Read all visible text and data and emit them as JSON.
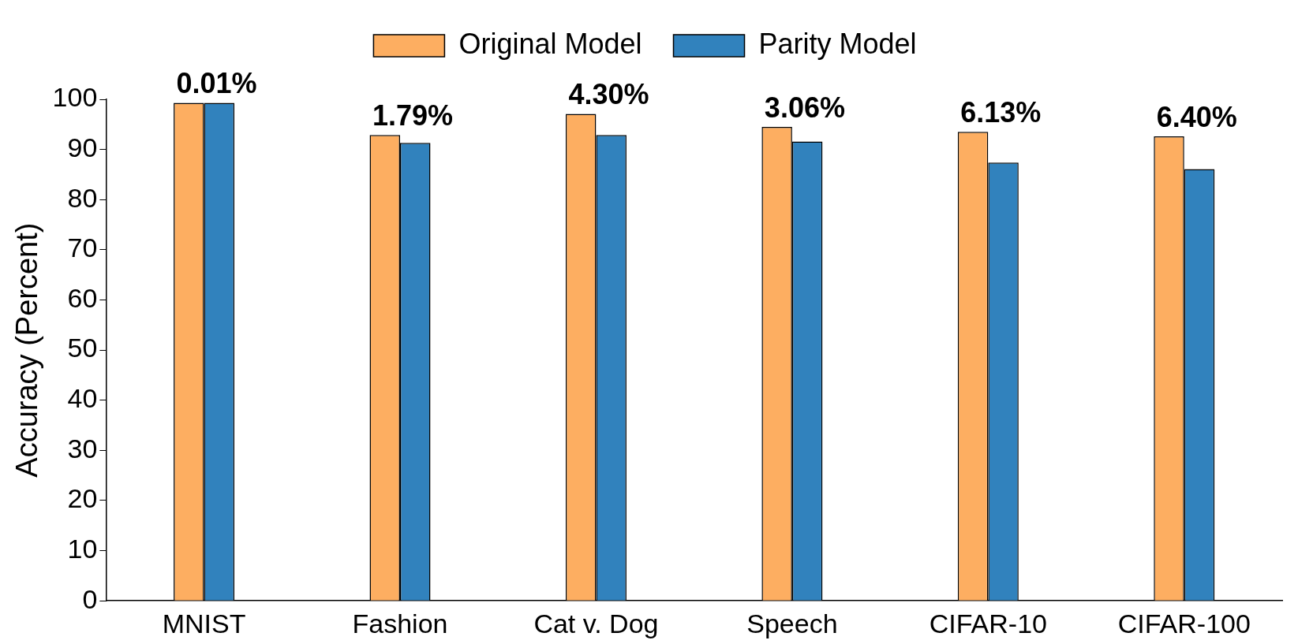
{
  "chart_data": {
    "type": "bar",
    "ylabel": "Accuracy (Percent)",
    "categories": [
      "MNIST",
      "Fashion",
      "Cat v. Dog",
      "Speech",
      "CIFAR-10",
      "CIFAR-100"
    ],
    "series": [
      {
        "name": "Original Model",
        "color": "#fdae61",
        "values": [
          99.3,
          92.9,
          97.1,
          94.5,
          93.5,
          92.6
        ]
      },
      {
        "name": "Parity Model",
        "color": "#3182bd",
        "values": [
          99.3,
          91.3,
          92.9,
          91.6,
          87.4,
          86.1
        ]
      }
    ],
    "ylim": [
      0,
      100
    ],
    "yticks": [
      0,
      10,
      20,
      30,
      40,
      50,
      60,
      70,
      80,
      90,
      100
    ],
    "grid": false,
    "legend": "top",
    "annotations": [
      {
        "text": "0.01%",
        "x": "MNIST",
        "y": 99.3
      },
      {
        "text": "1.79%",
        "x": "Fashion",
        "y": 92.9
      },
      {
        "text": "4.30%",
        "x": "Cat v. Dog",
        "y": 97.1
      },
      {
        "text": "3.06%",
        "x": "Speech",
        "y": 94.5
      },
      {
        "text": "6.13%",
        "x": "CIFAR-10",
        "y": 93.5
      },
      {
        "text": "6.40%",
        "x": "CIFAR-100",
        "y": 92.6
      }
    ]
  }
}
